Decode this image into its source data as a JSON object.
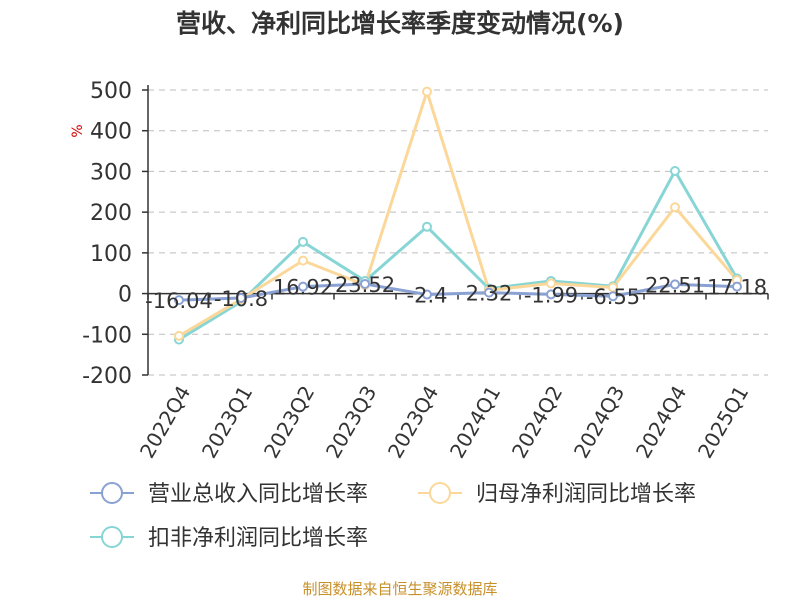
{
  "title": "营收、净利同比增长率季度变动情况(%)",
  "unit": "%",
  "source": "制图数据来自恒生聚源数据库",
  "chart_data": {
    "type": "line",
    "title": "营收、净利同比增长率季度变动情况(%)",
    "ylabel": "%",
    "ylim": [
      -200,
      500
    ],
    "yticks": [
      500,
      400,
      300,
      200,
      100,
      0,
      -100,
      -200
    ],
    "grid": true,
    "legend_position": "bottom",
    "categories": [
      "2022Q4",
      "2023Q1",
      "2023Q2",
      "2023Q3",
      "2023Q4",
      "2024Q1",
      "2024Q2",
      "2024Q3",
      "2024Q4",
      "2025Q1"
    ],
    "series": [
      {
        "name": "营业总收入同比增长率",
        "color": "#8aa1d3",
        "values": [
          -16.04,
          -10.8,
          16.92,
          23.52,
          -2.4,
          2.32,
          -1.99,
          -6.55,
          22.51,
          17.18
        ],
        "labels": [
          "-16.04",
          "-10.8",
          "16.92",
          "23.52",
          "-2.4",
          "2.32",
          "-1.99",
          "-6.55",
          "22.51",
          "17.18"
        ]
      },
      {
        "name": "归母净利润同比增长率",
        "color": "#fbd899",
        "values": [
          -104,
          -14,
          81,
          21,
          496,
          8,
          25,
          15,
          212,
          33
        ]
      },
      {
        "name": "扣非净利润同比增长率",
        "color": "#88d5d6",
        "values": [
          -113,
          -20,
          127,
          31,
          164,
          12,
          31,
          18,
          301,
          37
        ]
      }
    ]
  }
}
